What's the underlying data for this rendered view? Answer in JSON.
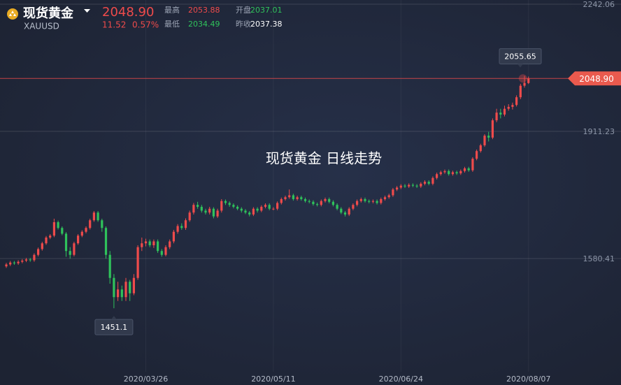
{
  "header": {
    "name": "现货黄金",
    "symbol": "XAUUSD",
    "price": "2048.90",
    "change": "11.52",
    "change_pct": "0.57%",
    "stats": [
      {
        "label": "最高",
        "value": "2053.88"
      },
      {
        "label": "开盘",
        "value": "2037.01"
      },
      {
        "label": "最低",
        "value": "2034.49"
      },
      {
        "label": "昨收",
        "value": "2037.38"
      }
    ]
  },
  "chart_data": {
    "type": "candlestick",
    "title": "现货黄金  日线走势",
    "up_color": "#ef4b4b",
    "down_color": "#2fc25b",
    "ylim": [
      1251.4,
      2253
    ],
    "yticks": [
      2242.06,
      1911.23,
      1580.41
    ],
    "grid": true,
    "last": {
      "value": 2048.9,
      "label": "2048.90"
    },
    "categories": [
      null,
      null,
      null,
      null,
      null,
      null,
      null,
      null,
      null,
      null,
      null,
      null,
      null,
      null,
      null,
      null,
      null,
      null,
      null,
      null,
      null,
      null,
      null,
      null,
      null,
      null,
      null,
      null,
      null,
      null,
      null,
      null,
      null,
      null,
      null,
      "2020/03/26",
      null,
      null,
      null,
      null,
      null,
      null,
      null,
      null,
      null,
      null,
      null,
      null,
      null,
      null,
      null,
      null,
      null,
      null,
      null,
      null,
      null,
      null,
      null,
      null,
      null,
      null,
      null,
      null,
      null,
      null,
      null,
      "2020/05/11",
      null,
      null,
      null,
      null,
      null,
      null,
      null,
      null,
      null,
      null,
      null,
      null,
      null,
      null,
      null,
      null,
      null,
      null,
      null,
      null,
      null,
      null,
      null,
      null,
      null,
      null,
      null,
      null,
      null,
      null,
      null,
      "2020/06/24",
      null,
      null,
      null,
      null,
      null,
      null,
      null,
      null,
      null,
      null,
      null,
      null,
      null,
      null,
      null,
      null,
      null,
      null,
      null,
      null,
      null,
      null,
      null,
      null,
      null,
      null,
      null,
      null,
      null,
      null,
      null,
      "2020/08/07"
    ],
    "open": [
      1560,
      1565,
      1570,
      1568,
      1572,
      1575,
      1578,
      1576,
      1590,
      1605,
      1620,
      1635,
      1640,
      1675,
      1660,
      1645,
      1600,
      1590,
      1620,
      1640,
      1650,
      1660,
      1680,
      1700,
      1680,
      1660,
      1590,
      1530,
      1480,
      1500,
      1480,
      1520,
      1490,
      1530,
      1610,
      1620,
      1625,
      1615,
      1625,
      1600,
      1590,
      1610,
      1625,
      1650,
      1665,
      1660,
      1680,
      1700,
      1720,
      1715,
      1705,
      1700,
      1710,
      1690,
      1705,
      1730,
      1725,
      1720,
      1715,
      1710,
      1705,
      1700,
      1695,
      1710,
      1705,
      1715,
      1720,
      1710,
      1710,
      1725,
      1735,
      1740,
      1745,
      1735,
      1740,
      1735,
      1730,
      1728,
      1722,
      1720,
      1730,
      1735,
      1728,
      1720,
      1710,
      1700,
      1695,
      1710,
      1720,
      1730,
      1735,
      1730,
      1728,
      1730,
      1725,
      1735,
      1740,
      1745,
      1760,
      1765,
      1770,
      1768,
      1772,
      1770,
      1768,
      1775,
      1780,
      1775,
      1790,
      1800,
      1805,
      1808,
      1800,
      1805,
      1802,
      1808,
      1815,
      1810,
      1840,
      1860,
      1875,
      1900,
      1895,
      1940,
      1960,
      1955,
      1970,
      1975,
      1980,
      2000,
      2030,
      2037.01
    ],
    "high": [
      1569,
      1574,
      1574,
      1576,
      1579,
      1582,
      1582,
      1594,
      1609,
      1624,
      1639,
      1644,
      1684,
      1679,
      1664,
      1649,
      1610,
      1624,
      1644,
      1654,
      1664,
      1684,
      1704,
      1704,
      1684,
      1664,
      1600,
      1540,
      1520,
      1510,
      1530,
      1525,
      1540,
      1615,
      1635,
      1632,
      1630,
      1630,
      1630,
      1605,
      1615,
      1630,
      1655,
      1670,
      1672,
      1685,
      1705,
      1725,
      1728,
      1720,
      1710,
      1715,
      1714,
      1710,
      1735,
      1734,
      1729,
      1724,
      1719,
      1714,
      1709,
      1704,
      1714,
      1714,
      1719,
      1724,
      1724,
      1714,
      1729,
      1739,
      1744,
      1760,
      1749,
      1744,
      1744,
      1739,
      1734,
      1732,
      1726,
      1734,
      1739,
      1739,
      1732,
      1724,
      1714,
      1704,
      1714,
      1724,
      1734,
      1739,
      1739,
      1734,
      1734,
      1734,
      1739,
      1744,
      1749,
      1764,
      1769,
      1774,
      1774,
      1776,
      1776,
      1774,
      1779,
      1784,
      1784,
      1794,
      1804,
      1809,
      1812,
      1812,
      1809,
      1809,
      1812,
      1819,
      1819,
      1844,
      1864,
      1879,
      1904,
      1910,
      1945,
      1970,
      1970,
      1978,
      1982,
      1986,
      2005,
      2035,
      2055.65,
      2053.88
    ],
    "low": [
      1556,
      1561,
      1564,
      1564,
      1568,
      1571,
      1572,
      1572,
      1586,
      1601,
      1616,
      1631,
      1636,
      1656,
      1641,
      1585,
      1580,
      1586,
      1616,
      1636,
      1646,
      1656,
      1676,
      1676,
      1650,
      1580,
      1515,
      1451.1,
      1470,
      1470,
      1470,
      1470,
      1485,
      1525,
      1600,
      1612,
      1610,
      1608,
      1595,
      1585,
      1586,
      1605,
      1620,
      1645,
      1655,
      1655,
      1676,
      1695,
      1710,
      1700,
      1695,
      1695,
      1685,
      1686,
      1700,
      1720,
      1715,
      1711,
      1706,
      1700,
      1696,
      1690,
      1691,
      1700,
      1701,
      1711,
      1706,
      1706,
      1706,
      1721,
      1731,
      1736,
      1731,
      1731,
      1731,
      1726,
      1724,
      1718,
      1716,
      1716,
      1726,
      1724,
      1716,
      1706,
      1696,
      1690,
      1691,
      1706,
      1716,
      1726,
      1726,
      1724,
      1724,
      1721,
      1721,
      1731,
      1736,
      1741,
      1756,
      1761,
      1764,
      1764,
      1766,
      1764,
      1764,
      1771,
      1771,
      1771,
      1786,
      1796,
      1801,
      1796,
      1796,
      1798,
      1798,
      1804,
      1806,
      1806,
      1836,
      1856,
      1871,
      1885,
      1891,
      1935,
      1945,
      1950,
      1965,
      1968,
      1976,
      1995,
      2025,
      2034.49
    ],
    "close": [
      1565,
      1570,
      1568,
      1572,
      1575,
      1578,
      1576,
      1590,
      1605,
      1620,
      1635,
      1640,
      1675,
      1660,
      1645,
      1600,
      1590,
      1620,
      1640,
      1650,
      1660,
      1680,
      1700,
      1680,
      1660,
      1590,
      1530,
      1480,
      1500,
      1480,
      1520,
      1490,
      1530,
      1610,
      1620,
      1625,
      1615,
      1625,
      1600,
      1590,
      1610,
      1625,
      1650,
      1665,
      1660,
      1680,
      1700,
      1720,
      1715,
      1705,
      1700,
      1710,
      1690,
      1705,
      1730,
      1725,
      1720,
      1715,
      1710,
      1705,
      1700,
      1695,
      1710,
      1705,
      1715,
      1720,
      1710,
      1710,
      1725,
      1735,
      1740,
      1745,
      1735,
      1740,
      1735,
      1730,
      1728,
      1722,
      1720,
      1730,
      1735,
      1728,
      1720,
      1710,
      1700,
      1695,
      1710,
      1720,
      1730,
      1735,
      1730,
      1728,
      1730,
      1725,
      1735,
      1740,
      1745,
      1760,
      1765,
      1770,
      1768,
      1772,
      1770,
      1768,
      1775,
      1780,
      1775,
      1790,
      1800,
      1805,
      1808,
      1800,
      1805,
      1802,
      1808,
      1815,
      1810,
      1840,
      1860,
      1875,
      1900,
      1895,
      1940,
      1960,
      1955,
      1970,
      1975,
      1980,
      2000,
      2030,
      2037.38,
      2048.9
    ]
  }
}
